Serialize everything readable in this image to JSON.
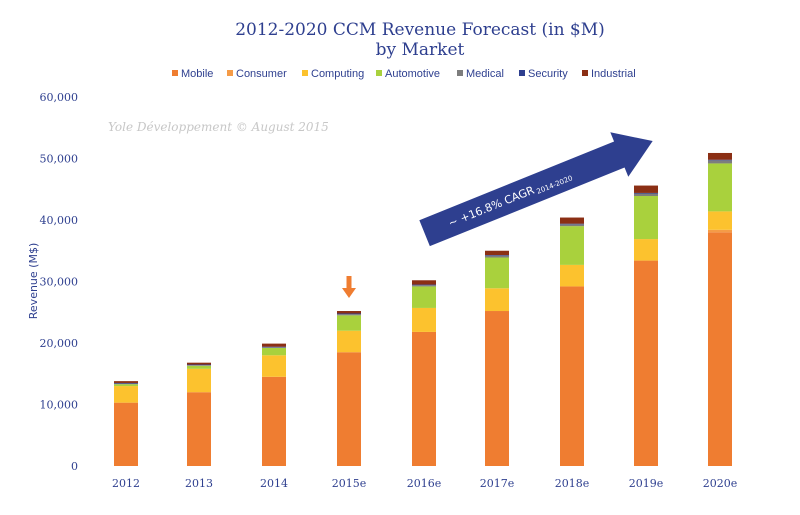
{
  "chart_data": {
    "type": "bar",
    "stacked": true,
    "title": "2012-2020 CCM Revenue Forecast (in $M)",
    "subtitle": "by Market",
    "ylabel": "Revenue (M$)",
    "xlabel": "",
    "ylim": [
      0,
      60000
    ],
    "yticks": [
      "0",
      "10,000",
      "20,000",
      "30,000",
      "40,000",
      "50,000",
      "60,000"
    ],
    "ytick_values": [
      0,
      10000,
      20000,
      30000,
      40000,
      50000,
      60000
    ],
    "grid": false,
    "legend_position": "top",
    "categories": [
      "2012",
      "2013",
      "2014",
      "2015e",
      "2016e",
      "2017e",
      "2018e",
      "2019e",
      "2020e"
    ],
    "series": [
      {
        "name": "Mobile",
        "color": "#ef7d31",
        "values": [
          10300,
          12000,
          14500,
          18500,
          21800,
          25200,
          29200,
          33400,
          38000
        ]
      },
      {
        "name": "Consumer",
        "color": "#f59b47",
        "values": [
          0,
          0,
          0,
          0,
          0,
          0,
          0,
          0,
          400
        ]
      },
      {
        "name": "Computing",
        "color": "#fcc22e",
        "values": [
          2700,
          3800,
          3500,
          3500,
          3900,
          3700,
          3500,
          3500,
          3000
        ]
      },
      {
        "name": "Automotive",
        "color": "#a9d13d",
        "values": [
          300,
          500,
          1200,
          2500,
          3500,
          5000,
          6300,
          7000,
          7800
        ]
      },
      {
        "name": "Medical",
        "color": "#7d7d7d",
        "values": [
          100,
          100,
          100,
          200,
          200,
          300,
          300,
          400,
          500
        ]
      },
      {
        "name": "Security",
        "color": "#2e3f8f",
        "values": [
          100,
          100,
          100,
          100,
          100,
          100,
          100,
          100,
          100
        ]
      },
      {
        "name": "Industrial",
        "color": "#8b2f14",
        "values": [
          300,
          300,
          500,
          400,
          700,
          700,
          1000,
          1200,
          1100
        ]
      }
    ],
    "annotations": {
      "watermark": "Yole Développement © August 2015",
      "cagr_label": "~ +16.8% CAGR",
      "cagr_subscript": "2014-2020",
      "arrow_color": "#2e3f8f",
      "marker_color": "#ef7d31"
    }
  }
}
